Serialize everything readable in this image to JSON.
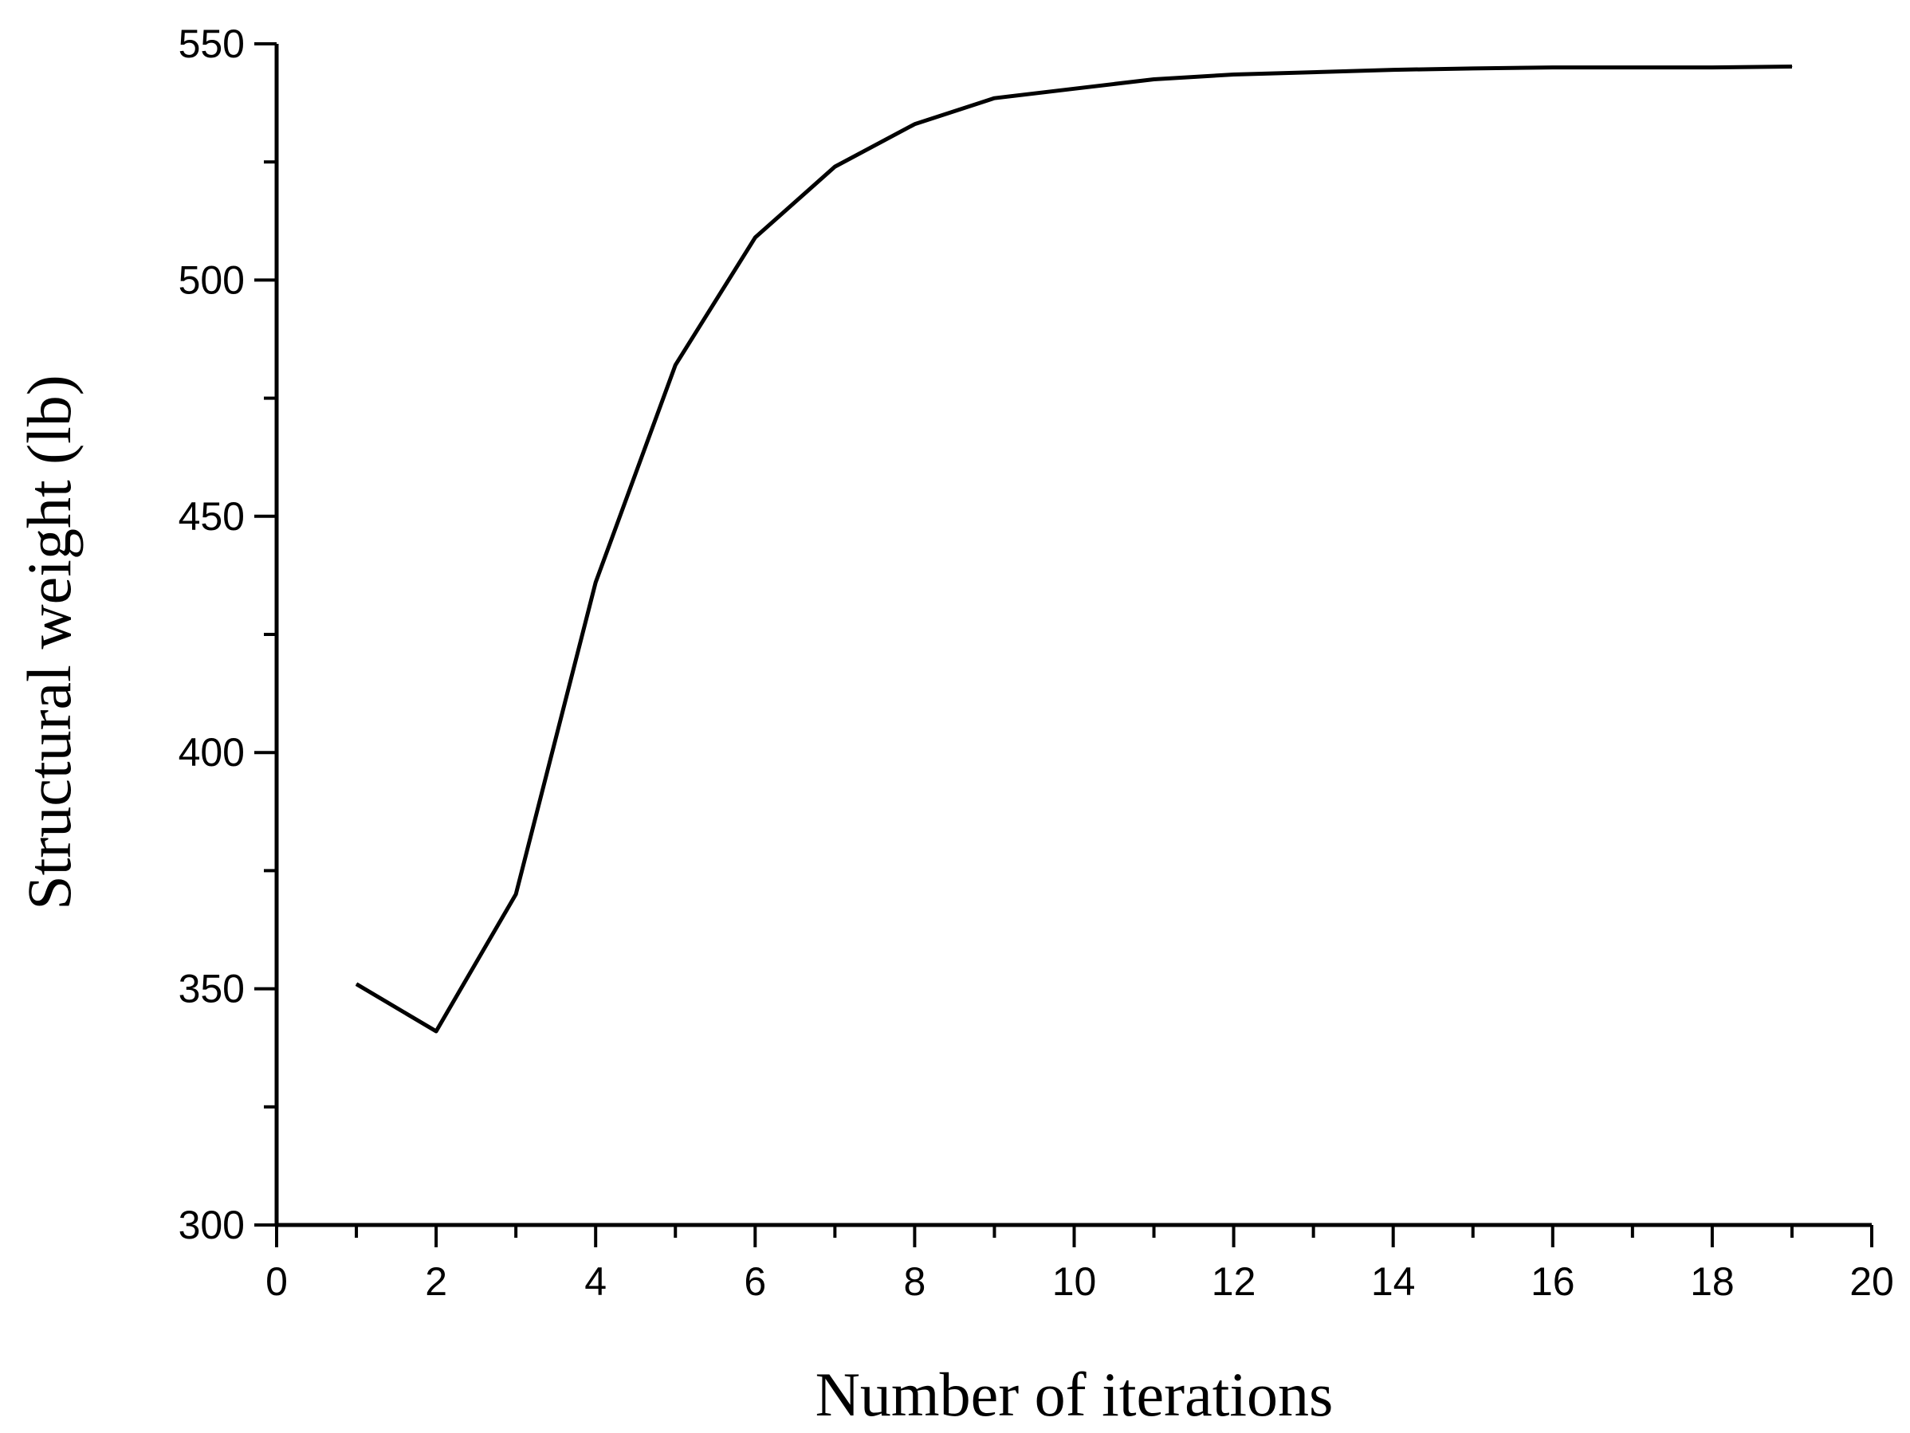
{
  "chart_data": {
    "type": "line",
    "title": "",
    "xlabel": "Number of iterations",
    "ylabel": "Structural weight (lb)",
    "xlim": [
      0,
      20
    ],
    "ylim": [
      300,
      550
    ],
    "x_ticks": [
      0,
      2,
      4,
      6,
      8,
      10,
      12,
      14,
      16,
      18,
      20
    ],
    "x_tick_labels": [
      "0",
      "2",
      "4",
      "6",
      "8",
      "10",
      "12",
      "14",
      "16",
      "18",
      "20"
    ],
    "x_minor_ticks": [
      1,
      3,
      5,
      7,
      9,
      11,
      13,
      15,
      17,
      19
    ],
    "y_ticks": [
      300,
      350,
      400,
      450,
      500,
      550
    ],
    "y_tick_labels": [
      "300",
      "350",
      "400",
      "450",
      "500",
      "550"
    ],
    "y_minor_ticks": [
      325,
      375,
      425,
      475,
      525
    ],
    "grid": false,
    "legend": "none",
    "line_color": "#000000",
    "series": [
      {
        "x": [
          1,
          2,
          3,
          4,
          5,
          6,
          7,
          8,
          9,
          10,
          11,
          12,
          13,
          14,
          15,
          16,
          17,
          18,
          19
        ],
        "values": [
          351,
          341,
          370,
          436,
          482,
          509,
          524,
          533,
          538.5,
          540.5,
          542.5,
          543.5,
          544,
          544.5,
          544.8,
          545,
          545,
          545,
          545.2
        ]
      }
    ]
  }
}
